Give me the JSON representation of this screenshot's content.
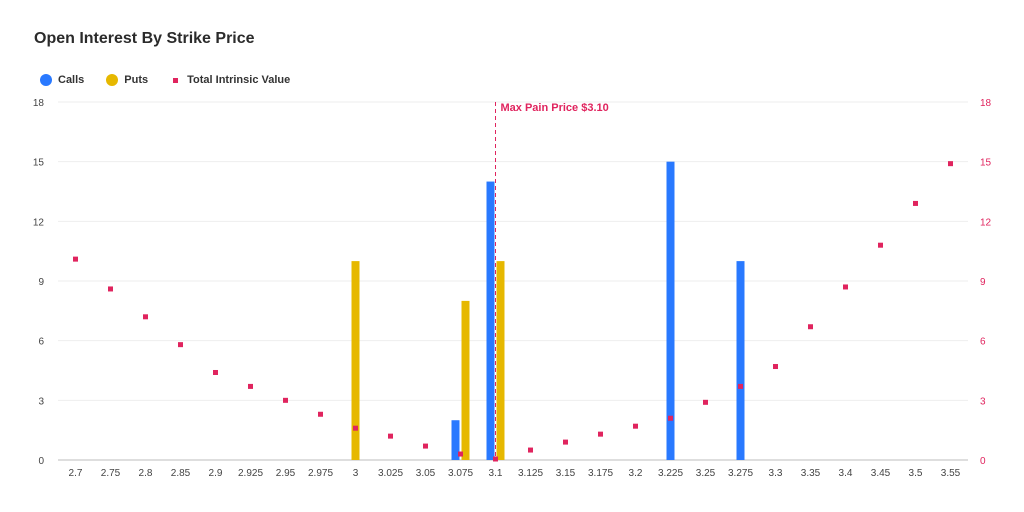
{
  "chart_data": {
    "type": "bar",
    "title": "Open Interest By Strike Price",
    "categories": [
      "2.7",
      "2.75",
      "2.8",
      "2.85",
      "2.9",
      "2.925",
      "2.95",
      "2.975",
      "3",
      "3.025",
      "3.05",
      "3.075",
      "3.1",
      "3.125",
      "3.15",
      "3.175",
      "3.2",
      "3.225",
      "3.25",
      "3.275",
      "3.3",
      "3.35",
      "3.4",
      "3.45",
      "3.5",
      "3.55"
    ],
    "series": [
      {
        "name": "Calls",
        "kind": "bar",
        "color": "#2979ff",
        "values": [
          0,
          0,
          0,
          0,
          0,
          0,
          0,
          0,
          0,
          0,
          0,
          2,
          14,
          0,
          0,
          0,
          0,
          15,
          0,
          10,
          0,
          0,
          0,
          0,
          0,
          0
        ]
      },
      {
        "name": "Puts",
        "kind": "bar",
        "color": "#e6b800",
        "values": [
          0,
          0,
          0,
          0,
          0,
          0,
          0,
          0,
          10,
          0,
          0,
          8,
          10,
          0,
          0,
          0,
          0,
          0,
          0,
          0,
          0,
          0,
          0,
          0,
          0,
          0
        ]
      },
      {
        "name": "Total Intrinsic Value",
        "kind": "point",
        "axis": "right",
        "color": "#e0245e",
        "values": [
          10.1,
          8.6,
          7.2,
          5.8,
          4.4,
          3.7,
          3.0,
          2.3,
          1.6,
          1.2,
          0.7,
          0.3,
          0.05,
          0.5,
          0.9,
          1.3,
          1.7,
          2.1,
          2.9,
          3.7,
          4.7,
          6.7,
          8.7,
          10.8,
          12.9,
          14.9
        ]
      }
    ],
    "yticks": [
      "0",
      "3",
      "6",
      "9",
      "12",
      "15",
      "18"
    ],
    "ylim": [
      0,
      18
    ],
    "y2ticks": [
      "0",
      "3",
      "6",
      "9",
      "12",
      "15",
      "18"
    ],
    "y2lim": [
      0,
      18
    ],
    "annotation": {
      "label": "Max Pain Price $3.10",
      "category": "3.1",
      "color": "#e0245e"
    },
    "legend": "top-left",
    "grid": true
  },
  "legend": {
    "items": [
      {
        "label": "Calls",
        "color": "#2979ff"
      },
      {
        "label": "Puts",
        "color": "#e6b800"
      },
      {
        "label": "Total Intrinsic Value",
        "color": "#e0245e"
      }
    ]
  }
}
